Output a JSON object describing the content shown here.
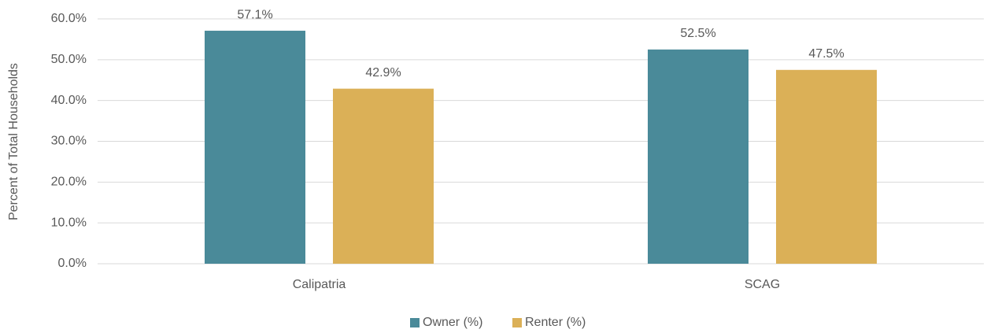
{
  "chart_data": {
    "type": "bar",
    "y_label": "Percent of Total Households",
    "categories": [
      "Calipatria",
      "SCAG"
    ],
    "series": [
      {
        "name": "Owner (%)",
        "color": "#4a8a99",
        "values": [
          57.1,
          52.5
        ],
        "value_labels": [
          "57.1%",
          "52.5%"
        ]
      },
      {
        "name": "Renter (%)",
        "color": "#dbb057",
        "values": [
          42.9,
          47.5
        ],
        "value_labels": [
          "42.9%",
          "47.5%"
        ]
      }
    ],
    "ylim": [
      0,
      60
    ],
    "yticks": [
      {
        "value": 0,
        "label": "0.0%"
      },
      {
        "value": 10,
        "label": "10.0%"
      },
      {
        "value": 20,
        "label": "20.0%"
      },
      {
        "value": 30,
        "label": "30.0%"
      },
      {
        "value": 40,
        "label": "40.0%"
      },
      {
        "value": 50,
        "label": "50.0%"
      },
      {
        "value": 60,
        "label": "60.0%"
      }
    ],
    "grid": true,
    "legend": "bottom"
  }
}
